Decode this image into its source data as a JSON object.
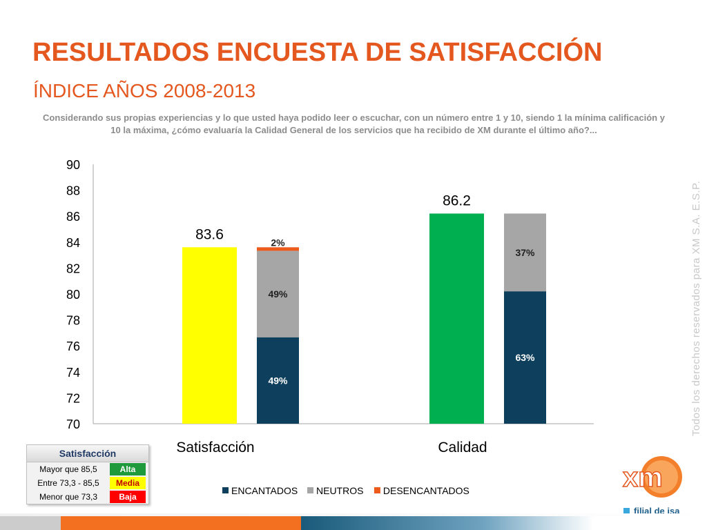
{
  "slide": {
    "title": "RESULTADOS ENCUESTA DE SATISFACCIÓN",
    "subtitle": "ÍNDICE AÑOS 2008-2013",
    "question": "Considerando sus propias experiencias y lo que usted haya podido leer o escuchar, con un número entre 1 y 10, siendo 1 la mínima calificación y 10 la máxima, ¿cómo evaluaría la Calidad General de los servicios que ha recibido de XM durante el último año?...",
    "side_note": "Todos los derechos reservados para XM S.A. E.S.P.",
    "filial": "filial de isa",
    "logo_icon": "xm-logo-icon"
  },
  "chart_data": {
    "type": "bar",
    "categories": [
      "Satisfacción",
      "Calidad"
    ],
    "index_values": [
      83.6,
      86.2
    ],
    "index_labels": [
      "83.6",
      "86.2"
    ],
    "index_colors": [
      "#ffff00",
      "#00b050"
    ],
    "ylim": [
      70,
      90
    ],
    "yticks": [
      70,
      72,
      74,
      76,
      78,
      80,
      82,
      84,
      86,
      88,
      90
    ],
    "grid": false,
    "stack_series": [
      {
        "name": "ENCANTADOS",
        "color": "#0e3f5c",
        "values": [
          49,
          63
        ],
        "labels": [
          "49%",
          "63%"
        ]
      },
      {
        "name": "NEUTROS",
        "color": "#a6a6a6",
        "values": [
          49,
          37
        ],
        "labels": [
          "49%",
          "37%"
        ]
      },
      {
        "name": "DESENCANTADOS",
        "color": "#ec5a1c",
        "values": [
          2,
          0
        ],
        "labels": [
          "2%",
          ""
        ]
      }
    ],
    "legend_position": "bottom"
  },
  "satisfaction_table": {
    "header": "Satisfacción",
    "rows": [
      {
        "range": "Mayor que 85,5",
        "level": "Alta",
        "color": "#1e9a3c"
      },
      {
        "range": "Entre 73,3 - 85,5",
        "level": "Media",
        "color": "#ffff00"
      },
      {
        "range": "Menor que 73,3",
        "level": "Baja",
        "color": "#ff0000"
      }
    ]
  }
}
